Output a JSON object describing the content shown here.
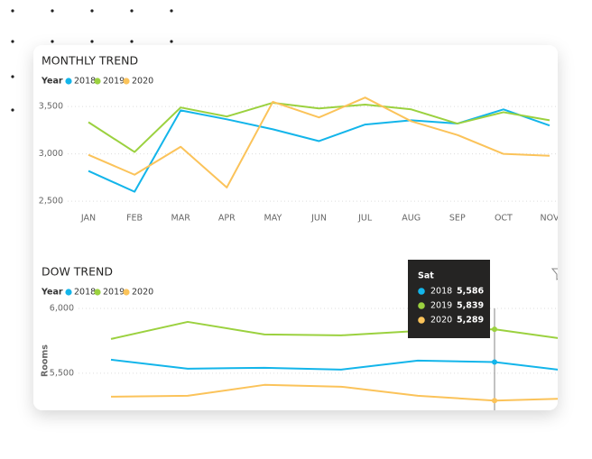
{
  "chart_data": [
    {
      "type": "line",
      "title": "MONTHLY TREND",
      "legend_title": "Year",
      "categories": [
        "JAN",
        "FEB",
        "MAR",
        "APR",
        "MAY",
        "JUN",
        "JUL",
        "AUG",
        "SEP",
        "OCT",
        "NOV"
      ],
      "series": [
        {
          "name": "2018",
          "color": "#13b5ea",
          "values": [
            2820,
            2600,
            3460,
            3365,
            3260,
            3135,
            3310,
            3355,
            3320,
            3470,
            3300
          ]
        },
        {
          "name": "2019",
          "color": "#9bd13f",
          "values": [
            3335,
            3020,
            3490,
            3395,
            3540,
            3480,
            3520,
            3470,
            3320,
            3440,
            3355
          ]
        },
        {
          "name": "2020",
          "color": "#fbc35a",
          "values": [
            2990,
            2780,
            3075,
            2645,
            3550,
            3385,
            3595,
            3345,
            3200,
            3000,
            2980
          ]
        }
      ],
      "ylim": [
        2450,
        3650
      ],
      "yticks": [
        {
          "value": 2500,
          "label": "2,500"
        },
        {
          "value": 3000,
          "label": "3,000"
        },
        {
          "value": 3500,
          "label": "3,500"
        }
      ],
      "grid": true
    },
    {
      "type": "line",
      "title": "DOW TREND",
      "legend_title": "Year",
      "ylabel": "Rooms",
      "categories": [
        null,
        null,
        null,
        null,
        null,
        "Sat",
        null
      ],
      "series": [
        {
          "name": "2018",
          "color": "#13b5ea",
          "values": [
            5604,
            5535,
            5542,
            5528,
            5597,
            5586,
            5515
          ],
          "value_labels": [
            null,
            null,
            null,
            null,
            null,
            "5,586",
            null
          ]
        },
        {
          "name": "2019",
          "color": "#9bd13f",
          "values": [
            5764,
            5896,
            5799,
            5792,
            5826,
            5839,
            5757
          ],
          "value_labels": [
            null,
            null,
            null,
            null,
            null,
            "5,839",
            null
          ]
        },
        {
          "name": "2020",
          "color": "#fbc35a",
          "values": [
            5319,
            5326,
            5410,
            5396,
            5326,
            5289,
            5306
          ],
          "value_labels": [
            null,
            null,
            null,
            null,
            null,
            "5,289",
            null
          ]
        }
      ],
      "ylim": [
        5200,
        6100
      ],
      "yticks": [
        {
          "value": 5500,
          "label": "5,500"
        },
        {
          "value": 6000,
          "label": "6,000"
        }
      ],
      "grid": true
    }
  ]
}
